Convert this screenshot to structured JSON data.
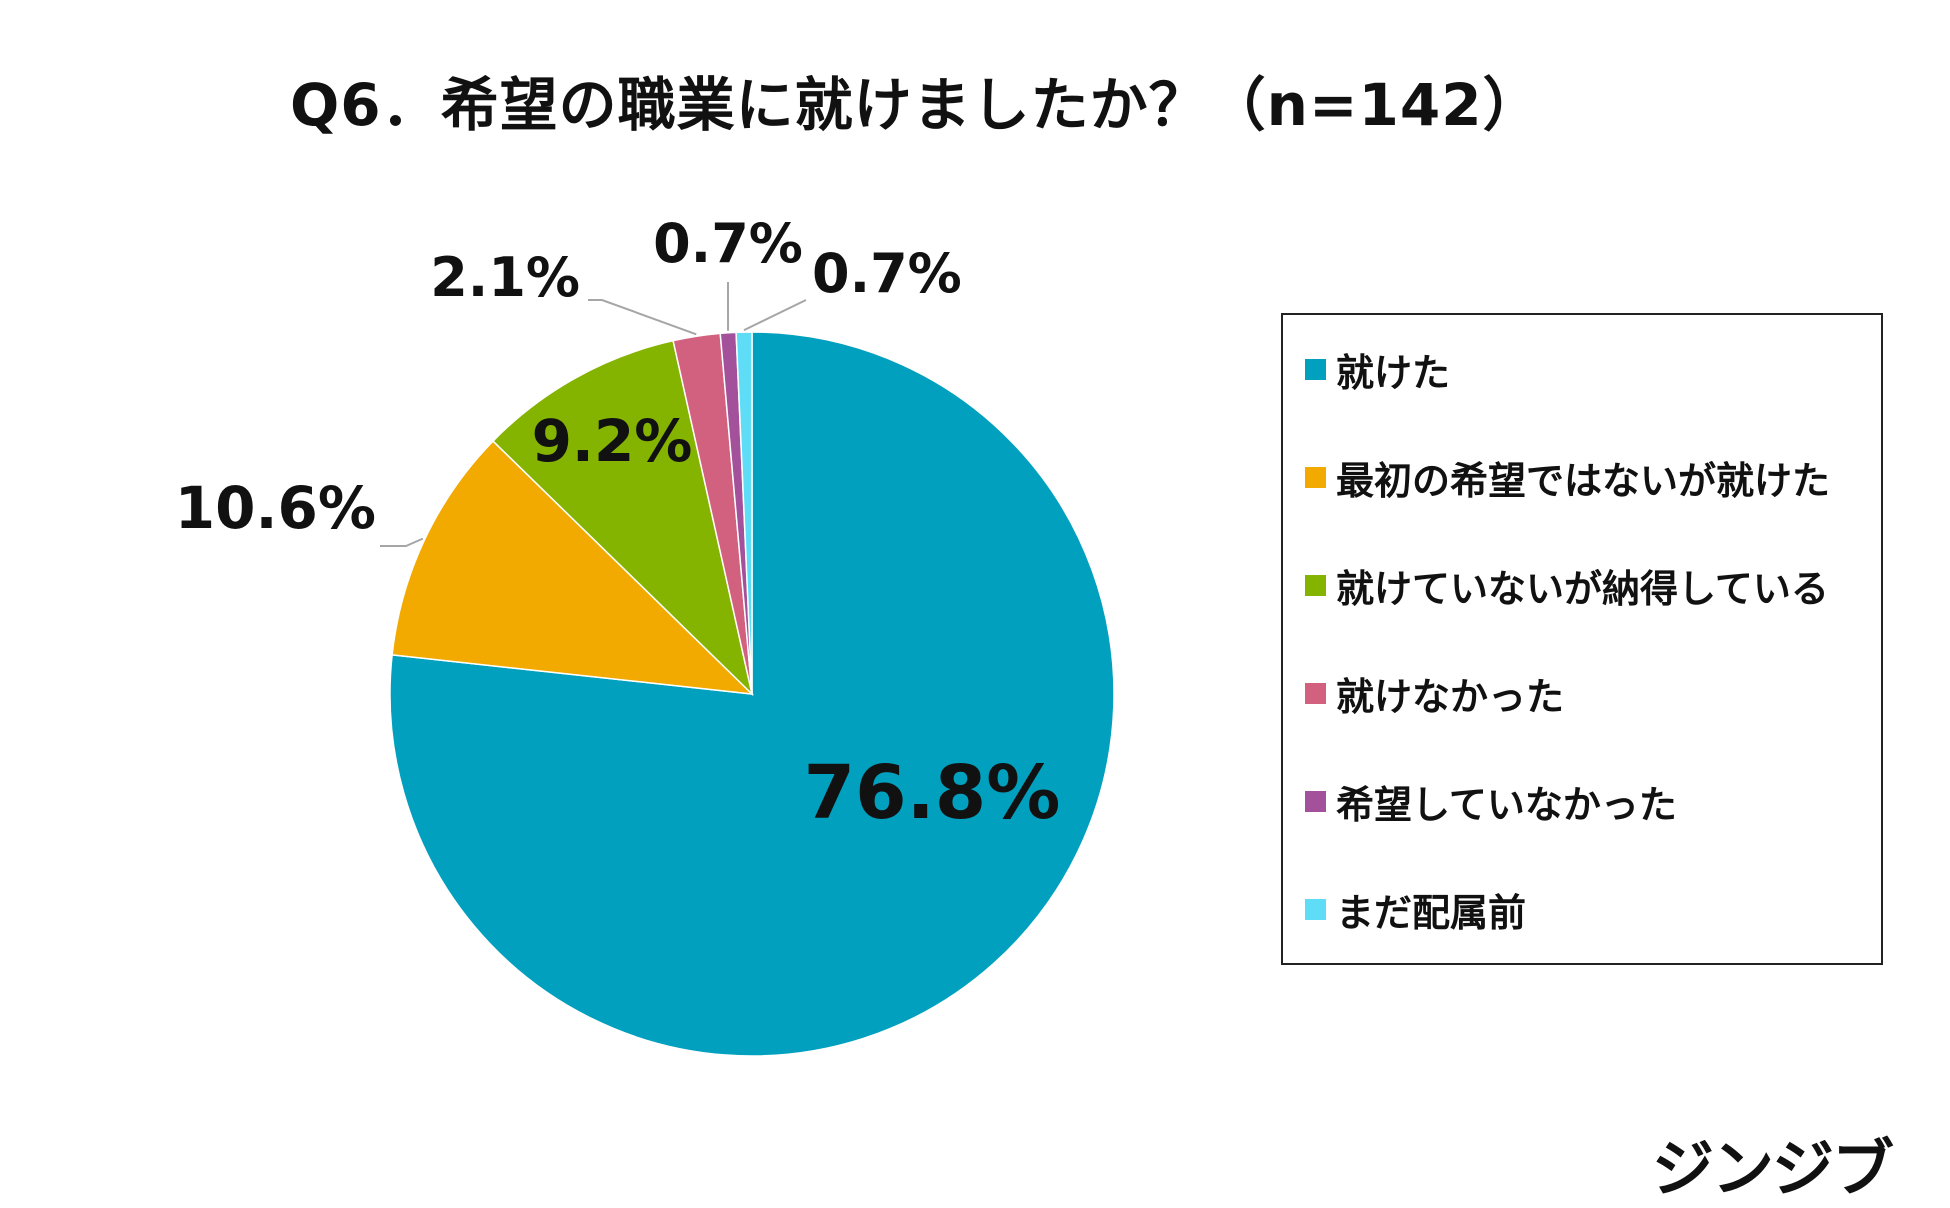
{
  "title": "Q6．希望の職業に就けましたか？（n=142）",
  "chart_data": {
    "type": "pie",
    "title": "Q6．希望の職業に就けましたか？（n=142）",
    "start_angle_deg": 0,
    "direction": "clockwise",
    "legend_position": "right",
    "slices": [
      {
        "label": "就けた",
        "value": 76.8,
        "display": "76.8%",
        "color": "#00A0BE"
      },
      {
        "label": "最初の希望ではないが就けた",
        "value": 10.6,
        "display": "10.6%",
        "color": "#F2A900"
      },
      {
        "label": "就けていないが納得している",
        "value": 9.2,
        "display": "9.2%",
        "color": "#84B300"
      },
      {
        "label": "就けなかった",
        "value": 2.1,
        "display": "2.1%",
        "color": "#D2617F"
      },
      {
        "label": "希望していなかった",
        "value": 0.7,
        "display": "0.7%",
        "color": "#A3519A"
      },
      {
        "label": "まだ配属前",
        "value": 0.7,
        "display": "0.7%",
        "color": "#5FDDF7"
      }
    ]
  },
  "brand": "ジンジブ"
}
